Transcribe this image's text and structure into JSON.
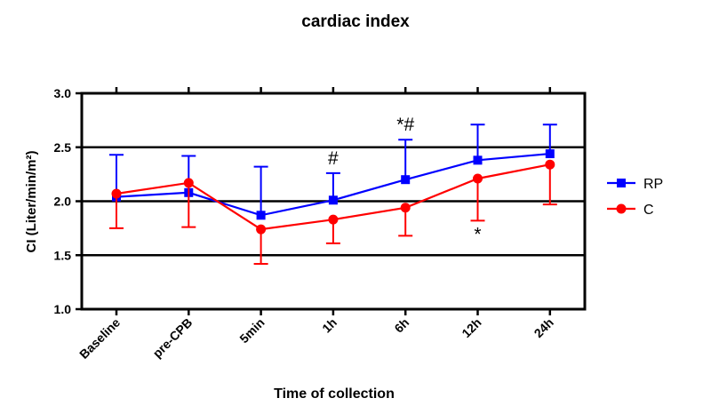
{
  "chart_data": {
    "type": "line",
    "title": "cardiac index",
    "xlabel": "Time of collection",
    "ylabel": "CI (Liter/min/m²)",
    "ylim": [
      1.0,
      3.0
    ],
    "yticks": [
      "1.0",
      "1.5",
      "2.0",
      "2.5",
      "3.0"
    ],
    "categories": [
      "Baseline",
      "pre-CPB",
      "5min",
      "1h",
      "6h",
      "12h",
      "24h"
    ],
    "grid": "horizontal at 1.5, 2.0, 2.5",
    "legend": "right",
    "series": [
      {
        "name": "RP",
        "color": "#0000ff",
        "marker": "square",
        "values": [
          2.04,
          2.08,
          1.87,
          2.01,
          2.2,
          2.38,
          2.44
        ],
        "error_upper": [
          2.43,
          2.42,
          2.32,
          2.26,
          2.57,
          2.71,
          2.71
        ]
      },
      {
        "name": "C",
        "color": "#ff0000",
        "marker": "circle",
        "values": [
          2.07,
          2.17,
          1.74,
          1.83,
          1.94,
          2.21,
          2.34
        ],
        "error_lower": [
          1.75,
          1.76,
          1.42,
          1.61,
          1.68,
          1.82,
          1.97
        ]
      }
    ],
    "annotations": [
      {
        "text": "#",
        "category": "1h",
        "position": "above RP"
      },
      {
        "text": "*#",
        "category": "6h",
        "position": "above RP"
      },
      {
        "text": "*",
        "category": "12h",
        "position": "below C"
      }
    ]
  }
}
